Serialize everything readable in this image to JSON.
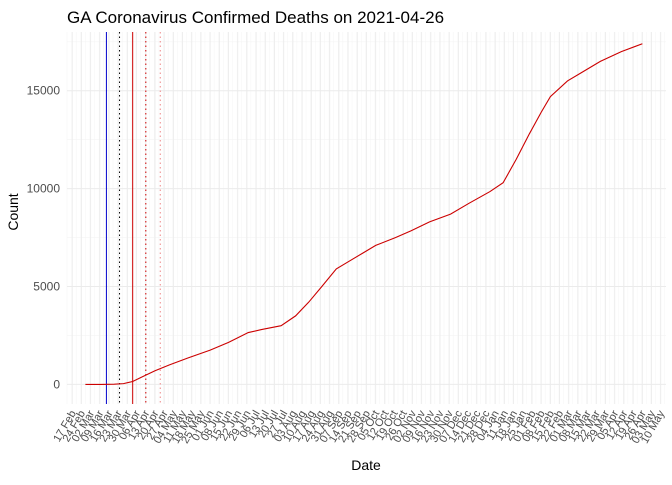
{
  "chart_data": {
    "type": "line",
    "title": "GA Coronavirus Confirmed Deaths on 2021-04-26",
    "xlabel": "Date",
    "ylabel": "Count",
    "x_type": "date",
    "xlim": [
      "2020-02-13",
      "2021-05-14"
    ],
    "ylim": [
      -1000,
      18000
    ],
    "y_ticks": [
      0,
      5000,
      10000,
      15000
    ],
    "x_ticks": [
      {
        "date": "2020-02-17",
        "label": "17 Feb"
      },
      {
        "date": "2020-02-24",
        "label": "24 Feb"
      },
      {
        "date": "2020-03-02",
        "label": "02 Mar"
      },
      {
        "date": "2020-03-09",
        "label": "09 Mar"
      },
      {
        "date": "2020-03-16",
        "label": "16 Mar"
      },
      {
        "date": "2020-03-23",
        "label": "23 Mar"
      },
      {
        "date": "2020-03-30",
        "label": "30 Mar"
      },
      {
        "date": "2020-04-06",
        "label": "06 Apr"
      },
      {
        "date": "2020-04-13",
        "label": "13 Apr"
      },
      {
        "date": "2020-04-20",
        "label": "20 Apr"
      },
      {
        "date": "2020-04-27",
        "label": "27 Apr"
      },
      {
        "date": "2020-05-04",
        "label": "04 May"
      },
      {
        "date": "2020-05-11",
        "label": "11 May"
      },
      {
        "date": "2020-05-18",
        "label": "18 May"
      },
      {
        "date": "2020-05-25",
        "label": "25 May"
      },
      {
        "date": "2020-06-01",
        "label": "01 Jun"
      },
      {
        "date": "2020-06-08",
        "label": "08 Jun"
      },
      {
        "date": "2020-06-15",
        "label": "15 Jun"
      },
      {
        "date": "2020-06-22",
        "label": "22 Jun"
      },
      {
        "date": "2020-06-29",
        "label": "29 Jun"
      },
      {
        "date": "2020-07-06",
        "label": "06 Jul"
      },
      {
        "date": "2020-07-13",
        "label": "13 Jul"
      },
      {
        "date": "2020-07-20",
        "label": "20 Jul"
      },
      {
        "date": "2020-07-27",
        "label": "27 Jul"
      },
      {
        "date": "2020-08-03",
        "label": "03 Aug"
      },
      {
        "date": "2020-08-10",
        "label": "10 Aug"
      },
      {
        "date": "2020-08-17",
        "label": "17 Aug"
      },
      {
        "date": "2020-08-24",
        "label": "24 Aug"
      },
      {
        "date": "2020-08-31",
        "label": "31 Aug"
      },
      {
        "date": "2020-09-07",
        "label": "07 Sep"
      },
      {
        "date": "2020-09-14",
        "label": "14 Sep"
      },
      {
        "date": "2020-09-21",
        "label": "21 Sep"
      },
      {
        "date": "2020-09-28",
        "label": "28 Sep"
      },
      {
        "date": "2020-10-05",
        "label": "05 Oct"
      },
      {
        "date": "2020-10-12",
        "label": "12 Oct"
      },
      {
        "date": "2020-10-19",
        "label": "19 Oct"
      },
      {
        "date": "2020-10-26",
        "label": "26 Oct"
      },
      {
        "date": "2020-11-02",
        "label": "02 Nov"
      },
      {
        "date": "2020-11-09",
        "label": "09 Nov"
      },
      {
        "date": "2020-11-16",
        "label": "16 Nov"
      },
      {
        "date": "2020-11-23",
        "label": "23 Nov"
      },
      {
        "date": "2020-11-30",
        "label": "30 Nov"
      },
      {
        "date": "2020-12-07",
        "label": "07 Dec"
      },
      {
        "date": "2020-12-14",
        "label": "14 Dec"
      },
      {
        "date": "2020-12-21",
        "label": "21 Dec"
      },
      {
        "date": "2020-12-28",
        "label": "28 Dec"
      },
      {
        "date": "2021-01-04",
        "label": "04 Jan"
      },
      {
        "date": "2021-01-11",
        "label": "11 Jan"
      },
      {
        "date": "2021-01-18",
        "label": "18 Jan"
      },
      {
        "date": "2021-01-25",
        "label": "25 Jan"
      },
      {
        "date": "2021-02-01",
        "label": "01 Feb"
      },
      {
        "date": "2021-02-08",
        "label": "08 Feb"
      },
      {
        "date": "2021-02-15",
        "label": "15 Feb"
      },
      {
        "date": "2021-02-22",
        "label": "22 Feb"
      },
      {
        "date": "2021-03-01",
        "label": "01 Mar"
      },
      {
        "date": "2021-03-08",
        "label": "08 Mar"
      },
      {
        "date": "2021-03-15",
        "label": "15 Mar"
      },
      {
        "date": "2021-03-22",
        "label": "22 Mar"
      },
      {
        "date": "2021-03-29",
        "label": "29 Mar"
      },
      {
        "date": "2021-04-05",
        "label": "05 Apr"
      },
      {
        "date": "2021-04-12",
        "label": "12 Apr"
      },
      {
        "date": "2021-04-19",
        "label": "19 Apr"
      },
      {
        "date": "2021-04-26",
        "label": "26 Apr"
      },
      {
        "date": "2021-05-03",
        "label": "03 May"
      },
      {
        "date": "2021-05-10",
        "label": "10 May"
      }
    ],
    "series": [
      {
        "color": "#cc0000",
        "points": [
          [
            "2020-02-27",
            0
          ],
          [
            "2020-03-10",
            0
          ],
          [
            "2020-03-20",
            10
          ],
          [
            "2020-03-27",
            40
          ],
          [
            "2020-04-03",
            150
          ],
          [
            "2020-04-10",
            380
          ],
          [
            "2020-04-20",
            700
          ],
          [
            "2020-05-01",
            1000
          ],
          [
            "2020-05-15",
            1350
          ],
          [
            "2020-06-01",
            1750
          ],
          [
            "2020-06-15",
            2150
          ],
          [
            "2020-06-30",
            2650
          ],
          [
            "2020-07-10",
            2800
          ],
          [
            "2020-07-25",
            3000
          ],
          [
            "2020-08-05",
            3500
          ],
          [
            "2020-08-15",
            4200
          ],
          [
            "2020-08-25",
            5000
          ],
          [
            "2020-09-05",
            5900
          ],
          [
            "2020-09-15",
            6300
          ],
          [
            "2020-09-25",
            6700
          ],
          [
            "2020-10-05",
            7100
          ],
          [
            "2020-10-20",
            7500
          ],
          [
            "2020-11-01",
            7850
          ],
          [
            "2020-11-15",
            8300
          ],
          [
            "2020-12-01",
            8700
          ],
          [
            "2020-12-15",
            9250
          ],
          [
            "2020-12-31",
            9850
          ],
          [
            "2021-01-10",
            10300
          ],
          [
            "2021-01-20",
            11500
          ],
          [
            "2021-01-30",
            12800
          ],
          [
            "2021-02-08",
            13900
          ],
          [
            "2021-02-15",
            14700
          ],
          [
            "2021-02-28",
            15500
          ],
          [
            "2021-03-10",
            15900
          ],
          [
            "2021-03-25",
            16500
          ],
          [
            "2021-04-10",
            17000
          ],
          [
            "2021-04-26",
            17400
          ]
        ]
      }
    ],
    "reference_lines": [
      {
        "date": "2020-03-14",
        "color": "#0000cc",
        "style": "solid"
      },
      {
        "date": "2020-03-24",
        "color": "#000000",
        "style": "dotted"
      },
      {
        "date": "2020-04-03",
        "color": "#cc0000",
        "style": "solid"
      },
      {
        "date": "2020-04-13",
        "color": "#cc0000",
        "style": "dotted"
      },
      {
        "date": "2020-04-24",
        "color": "#ee8888",
        "style": "dotted"
      }
    ],
    "grid": true,
    "colors": {
      "panel_bg": "#ffffff",
      "grid_major": "#ebebeb",
      "grid_minor": "#f4f4f4",
      "tick_text": "#4d4d4d"
    }
  }
}
